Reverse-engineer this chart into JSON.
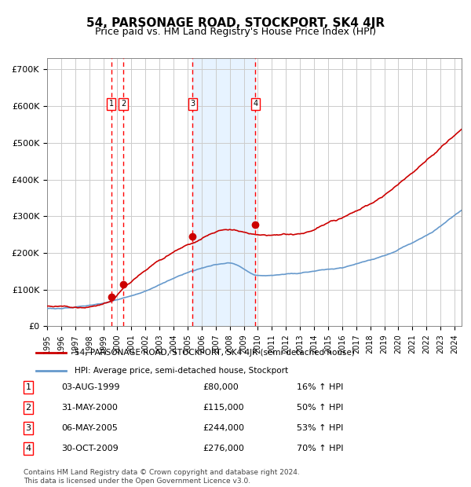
{
  "title": "54, PARSONAGE ROAD, STOCKPORT, SK4 4JR",
  "subtitle": "Price paid vs. HM Land Registry's House Price Index (HPI)",
  "legend_line1": "54, PARSONAGE ROAD, STOCKPORT, SK4 4JR (semi-detached house)",
  "legend_line2": "HPI: Average price, semi-detached house, Stockport",
  "footer": "Contains HM Land Registry data © Crown copyright and database right 2024.\nThis data is licensed under the Open Government Licence v3.0.",
  "property_color": "#cc0000",
  "hpi_color": "#6699cc",
  "shade_color": "#ddeeff",
  "transactions": [
    {
      "num": 1,
      "date_label": "03-AUG-1999",
      "price_label": "£80,000",
      "pct_label": "16% ↑ HPI",
      "year_x": 1999.58,
      "price": 80000
    },
    {
      "num": 2,
      "date_label": "31-MAY-2000",
      "price_label": "£115,000",
      "pct_label": "50% ↑ HPI",
      "year_x": 2000.42,
      "price": 115000
    },
    {
      "num": 3,
      "date_label": "06-MAY-2005",
      "price_label": "£244,000",
      "pct_label": "53% ↑ HPI",
      "year_x": 2005.35,
      "price": 244000
    },
    {
      "num": 4,
      "date_label": "30-OCT-2009",
      "price_label": "£276,000",
      "pct_label": "70% ↑ HPI",
      "year_x": 2009.83,
      "price": 276000
    }
  ],
  "ylim": [
    0,
    730000
  ],
  "xlim_start": 1995.0,
  "xlim_end": 2024.5,
  "yticks": [
    0,
    100000,
    200000,
    300000,
    400000,
    500000,
    600000,
    700000
  ],
  "ytick_labels": [
    "£0",
    "£100K",
    "£200K",
    "£300K",
    "£400K",
    "£500K",
    "£600K",
    "£700K"
  ]
}
